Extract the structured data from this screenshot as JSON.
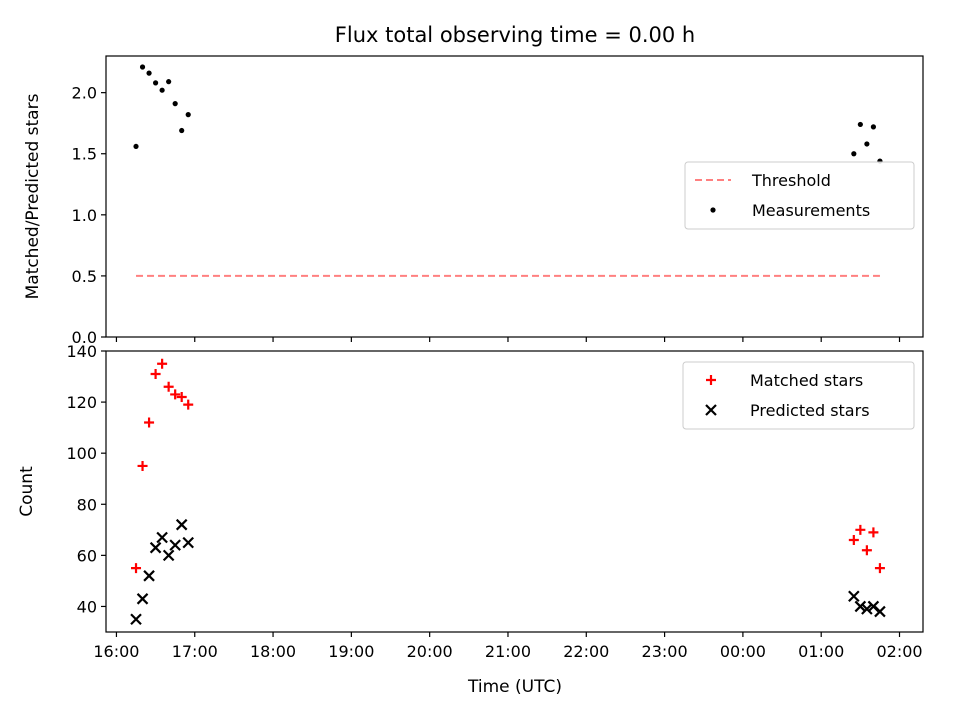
{
  "title": "Flux total observing time = 0.00 h",
  "xlabel": "Time (UTC)",
  "x_ticks": [
    "16:00",
    "17:00",
    "18:00",
    "19:00",
    "20:00",
    "21:00",
    "22:00",
    "23:00",
    "00:00",
    "01:00",
    "02:00"
  ],
  "colors": {
    "threshold": "#ff8080",
    "measurements": "#000000",
    "matched": "#ff0000",
    "predicted": "#000000"
  },
  "chart_data": [
    {
      "type": "scatter",
      "ylabel": "Matched/Predicted stars",
      "xlim": [
        "16:00",
        "02:00"
      ],
      "ylim": [
        0,
        2.3
      ],
      "y_ticks": [
        "0.0",
        "0.5",
        "1.0",
        "1.5",
        "2.0"
      ],
      "legend": "center-right",
      "series": [
        {
          "name": "Threshold",
          "style": "dashed-line",
          "x": [
            "16:15",
            "01:45"
          ],
          "y": [
            0.5,
            0.5
          ]
        },
        {
          "name": "Measurements",
          "style": "dot",
          "x": [
            "16:15",
            "16:20",
            "16:25",
            "16:30",
            "16:35",
            "16:40",
            "16:45",
            "16:50",
            "16:55",
            "01:25",
            "01:30",
            "01:35",
            "01:40",
            "01:45"
          ],
          "y": [
            1.56,
            2.21,
            2.16,
            2.08,
            2.02,
            2.09,
            1.91,
            1.69,
            1.82,
            1.5,
            1.74,
            1.58,
            1.72,
            1.44
          ]
        }
      ]
    },
    {
      "type": "scatter",
      "ylabel": "Count",
      "xlim": [
        "16:00",
        "02:00"
      ],
      "ylim": [
        30,
        140
      ],
      "y_ticks": [
        "40",
        "60",
        "80",
        "100",
        "120",
        "140"
      ],
      "legend": "top-right",
      "series": [
        {
          "name": "Matched stars",
          "marker": "plus",
          "x": [
            "16:15",
            "16:20",
            "16:25",
            "16:30",
            "16:35",
            "16:40",
            "16:45",
            "16:50",
            "16:55",
            "01:25",
            "01:30",
            "01:35",
            "01:40",
            "01:45"
          ],
          "y": [
            55,
            95,
            112,
            131,
            135,
            126,
            123,
            122,
            119,
            66,
            70,
            62,
            69,
            55
          ]
        },
        {
          "name": "Predicted stars",
          "marker": "x",
          "x": [
            "16:15",
            "16:20",
            "16:25",
            "16:30",
            "16:35",
            "16:40",
            "16:45",
            "16:50",
            "16:55",
            "01:25",
            "01:30",
            "01:35",
            "01:40",
            "01:45"
          ],
          "y": [
            35,
            43,
            52,
            63,
            67,
            60,
            64,
            72,
            65,
            44,
            40,
            39,
            40,
            38
          ]
        }
      ]
    }
  ]
}
